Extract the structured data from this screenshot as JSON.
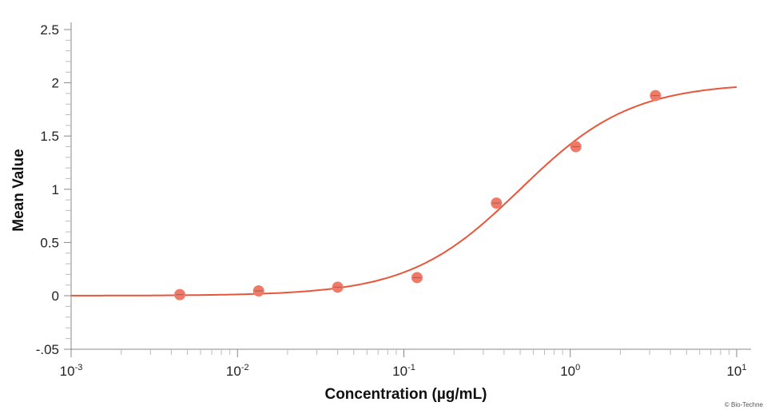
{
  "chart_data": {
    "type": "scatter",
    "title": "",
    "xlabel": "Concentration (µg/mL)",
    "ylabel": "Mean Value",
    "x_scale": "log",
    "xlim": [
      0.001,
      10
    ],
    "x_ticks": [
      {
        "base": "10",
        "exp": "-3"
      },
      {
        "base": "10",
        "exp": "-2"
      },
      {
        "base": "10",
        "exp": "-1"
      },
      {
        "base": "10",
        "exp": "0"
      },
      {
        "base": "10",
        "exp": "1"
      }
    ],
    "ylim": [
      -0.05,
      2.5
    ],
    "y_ticks": [
      "2.5",
      "2",
      "1.5",
      "1",
      "0.5",
      "0",
      "-.05"
    ],
    "grid": false,
    "points": [
      {
        "x": 0.0045,
        "y": 0.01
      },
      {
        "x": 0.0134,
        "y": 0.045
      },
      {
        "x": 0.04,
        "y": 0.08
      },
      {
        "x": 0.12,
        "y": 0.17
      },
      {
        "x": 0.36,
        "y": 0.87
      },
      {
        "x": 1.08,
        "y": 1.4
      },
      {
        "x": 3.25,
        "y": 1.88
      }
    ],
    "fit_curve": {
      "model": "4PL",
      "bottom": 0.0,
      "top": 2.0,
      "ec50": 0.5,
      "hill": 1.3
    },
    "colors": {
      "curve": "#e8563a",
      "points": "#f07a68",
      "axis": "#888888"
    }
  },
  "credit": "© Bio-Techne"
}
